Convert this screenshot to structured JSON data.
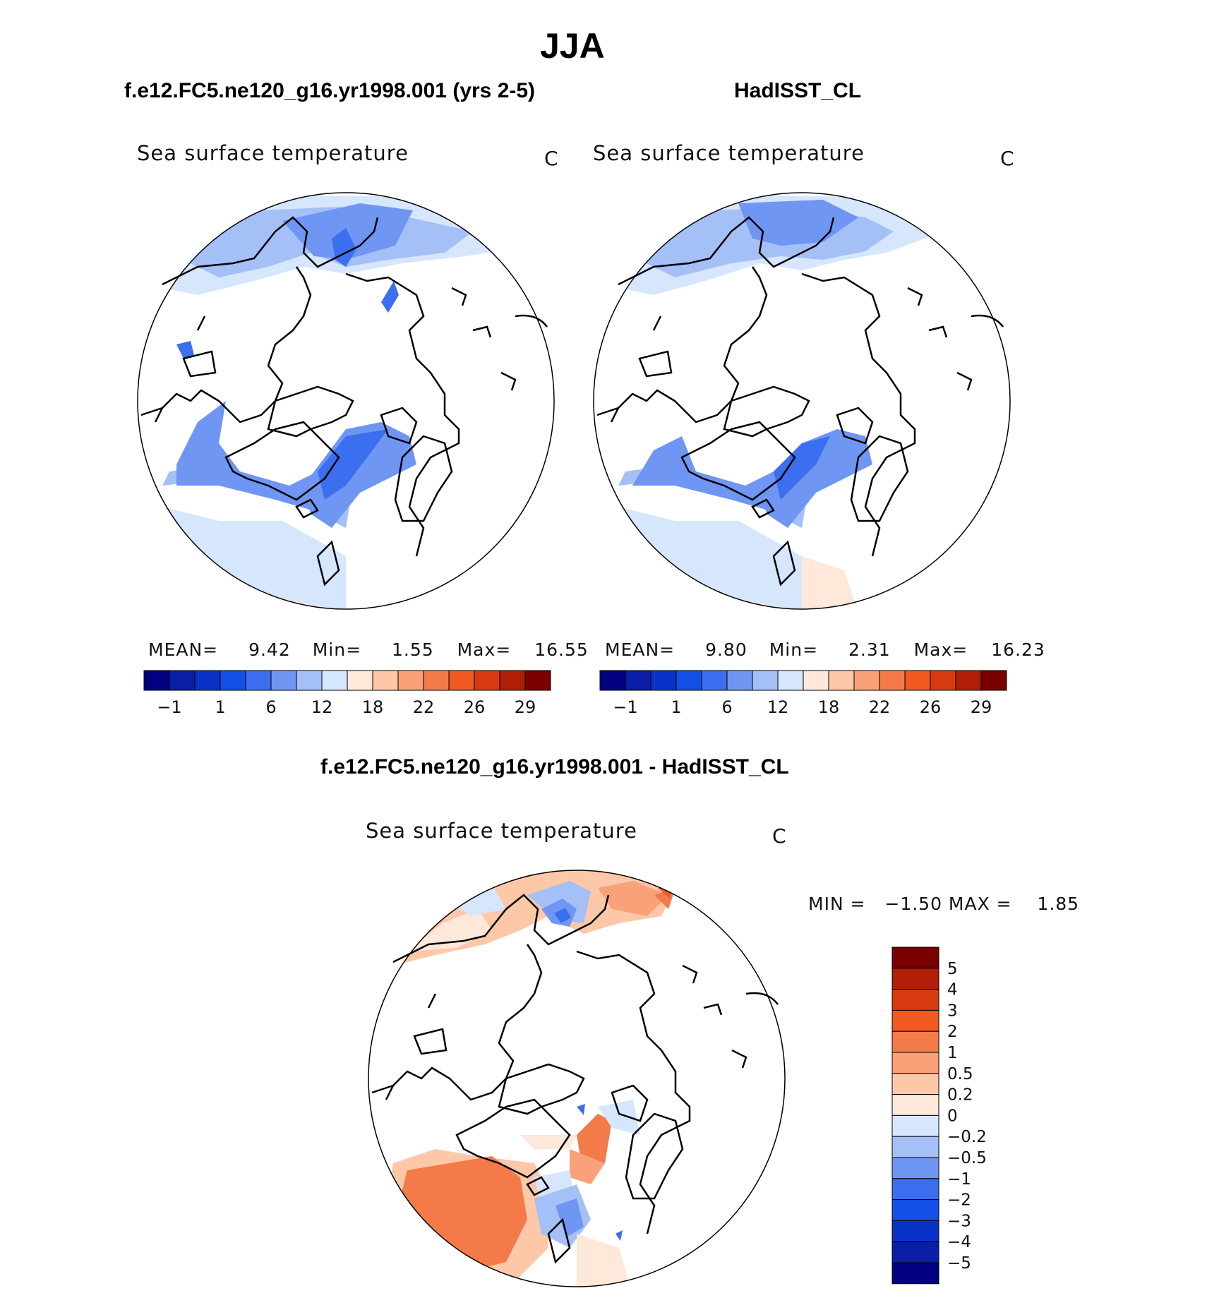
{
  "page_title": "JJA",
  "panel_left": {
    "case_title": "f.e12.FC5.ne120_g16.yr1998.001 (yrs 2-5)",
    "field_label": "Sea surface temperature",
    "units": "C",
    "stats": {
      "mean_label": "MEAN=",
      "mean": "9.42",
      "min_label": "Min=",
      "min": "1.55",
      "max_label": "Max=",
      "max": "16.55"
    }
  },
  "panel_right": {
    "case_title": "HadISST_CL",
    "field_label": "Sea surface temperature",
    "units": "C",
    "stats": {
      "mean_label": "MEAN=",
      "mean": "9.80",
      "min_label": "Min=",
      "min": "2.31",
      "max_label": "Max=",
      "max": "16.23"
    }
  },
  "panel_diff": {
    "case_title": "f.e12.FC5.ne120_g16.yr1998.001 - HadISST_CL",
    "field_label": "Sea surface temperature",
    "units": "C",
    "min_max_text": "MIN =   −1.50 MAX =    1.85"
  },
  "colorbar_abs": {
    "colors": [
      "#000080",
      "#0a1ea8",
      "#0b32c8",
      "#1450e8",
      "#3c6ef0",
      "#6e96f2",
      "#a4c0f6",
      "#d6e6fc",
      "#fde8da",
      "#fcc8a8",
      "#f9a27a",
      "#f47a4a",
      "#f05a20",
      "#d83a10",
      "#b01e08",
      "#7a0000"
    ],
    "tick_labels": [
      "−1",
      "1",
      "6",
      "12",
      "18",
      "22",
      "26",
      "29"
    ]
  },
  "colorbar_diff": {
    "colors_top_to_bottom": [
      "#7a0000",
      "#b01e08",
      "#d83a10",
      "#f05a20",
      "#f47a4a",
      "#f9a27a",
      "#fcc8a8",
      "#fde8da",
      "#d6e6fc",
      "#a4c0f6",
      "#6e96f2",
      "#3c6ef0",
      "#1450e8",
      "#0b32c8",
      "#0a1ea8",
      "#000080"
    ],
    "tick_labels": [
      "5",
      "4",
      "3",
      "2",
      "1",
      "0.5",
      "0.2",
      "0",
      "−0.2",
      "−0.5",
      "−1",
      "−2",
      "−3",
      "−4",
      "−5"
    ]
  },
  "field_colors": {
    "land_coast": "#000000",
    "cold_blue": "#6e96f2",
    "mid_blue": "#a4c0f6",
    "light_blue": "#d6e6fc",
    "deep_blue": "#3c6ef0",
    "peach": "#fde8da",
    "warm_orange": "#f47a4a",
    "light_orange": "#f9a27a",
    "pale_orange": "#fcc8a8"
  }
}
